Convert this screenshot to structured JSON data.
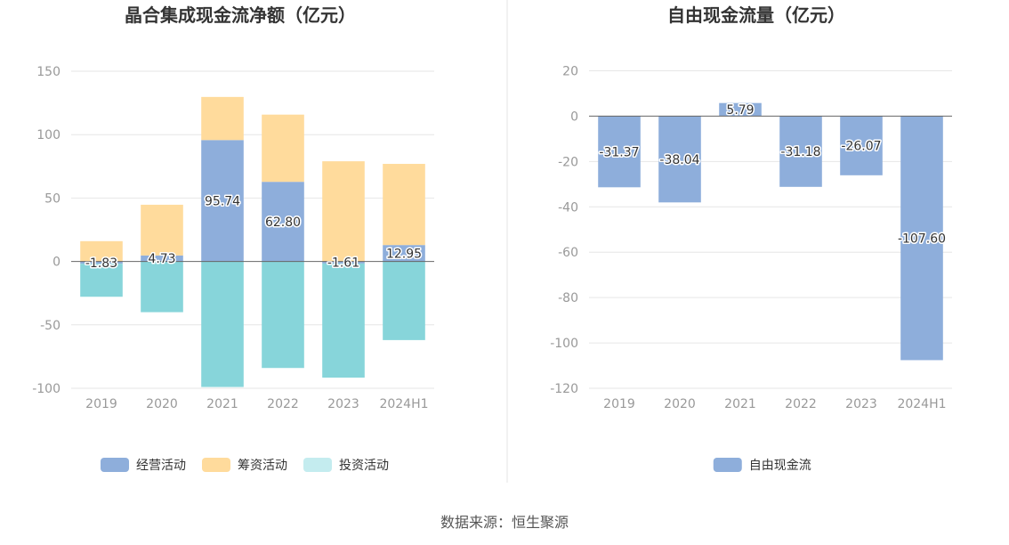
{
  "source_text": "数据来源：恒生聚源",
  "chart_data": [
    {
      "type": "bar",
      "stacked": true,
      "title": "晶合集成现金流净额（亿元）",
      "categories": [
        "2019",
        "2020",
        "2021",
        "2022",
        "2023",
        "2024H1"
      ],
      "ylim": [
        -100,
        150
      ],
      "yticks": [
        150,
        100,
        50,
        0,
        -50,
        -100
      ],
      "grid": true,
      "legend_position": "bottom",
      "series": [
        {
          "name": "经营活动",
          "color": "#8eaedb",
          "values": [
            -1.83,
            4.73,
            95.74,
            62.8,
            -1.61,
            12.95
          ],
          "labeled": true
        },
        {
          "name": "筹资活动",
          "color": "#ffdb9c",
          "values": [
            16,
            40,
            34,
            53,
            79,
            64
          ]
        },
        {
          "name": "投资活动",
          "color": "#87d5da",
          "legend_color": "#c4ecef",
          "values": [
            -26,
            -40,
            -99,
            -84,
            -90,
            -62
          ]
        }
      ]
    },
    {
      "type": "bar",
      "title": "自由现金流量（亿元）",
      "categories": [
        "2019",
        "2020",
        "2021",
        "2022",
        "2023",
        "2024H1"
      ],
      "ylim": [
        -120,
        20
      ],
      "yticks": [
        20,
        0,
        -20,
        -40,
        -60,
        -80,
        -100,
        -120
      ],
      "grid": true,
      "legend_position": "bottom",
      "series": [
        {
          "name": "自由现金流",
          "color": "#8eaedb",
          "values": [
            -31.37,
            -38.04,
            5.79,
            -31.18,
            -26.07,
            -107.6
          ],
          "labeled": true
        }
      ]
    }
  ]
}
